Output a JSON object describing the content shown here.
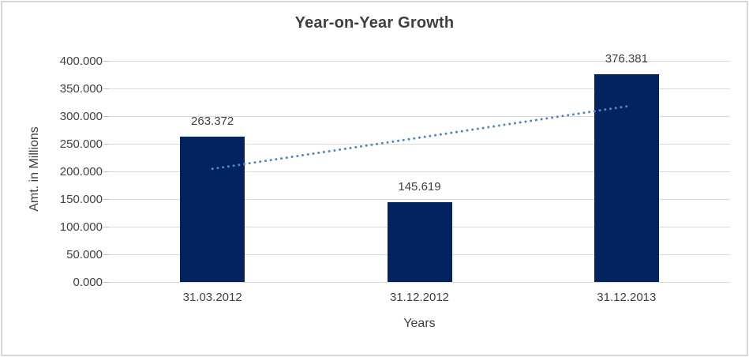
{
  "chart_data": {
    "type": "bar",
    "title": "Year-on-Year Growth",
    "xlabel": "Years",
    "ylabel": "Amt. in Millions",
    "categories": [
      "31.03.2012",
      "31.12.2012",
      "31.12.2013"
    ],
    "values": [
      263.372,
      145.619,
      376.381
    ],
    "data_labels": [
      "263.372",
      "145.619",
      "376.381"
    ],
    "ylim": [
      0,
      400
    ],
    "y_tick_step": 50,
    "y_tick_labels": [
      "0.000",
      "50.000",
      "100.000",
      "150.000",
      "200.000",
      "250.000",
      "300.000",
      "350.000",
      "400.000"
    ],
    "grid": true,
    "legend": "none",
    "trendline": {
      "type": "linear",
      "style": "dotted",
      "start_value": 205.3,
      "end_value": 318.3
    },
    "colors": {
      "bar": "#022360",
      "trendline": "#4e86c8",
      "gridline": "#d9d9d9",
      "tick": "#bfbfbf",
      "text": "#404040",
      "title": "#3f3f3f",
      "frame_border": "#d6d6d6"
    }
  }
}
